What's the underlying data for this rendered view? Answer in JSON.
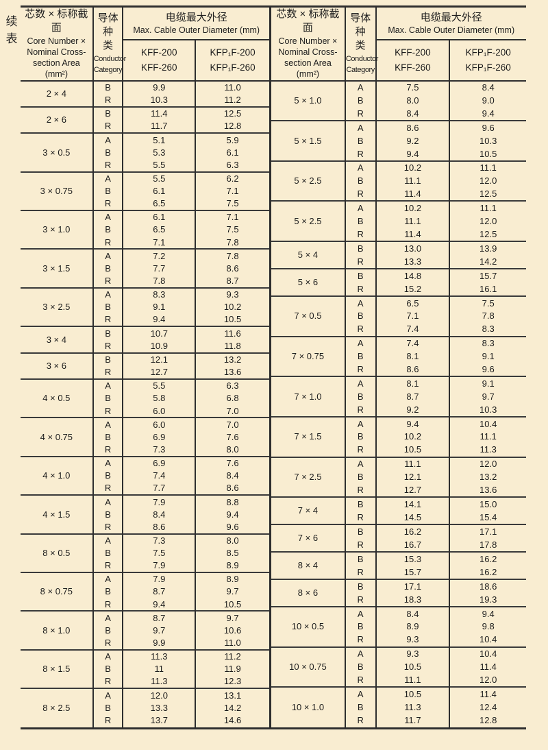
{
  "page": {
    "continued_label": "续\n表"
  },
  "colors": {
    "background": "#f9edd1",
    "rule": "#2e2e2e",
    "text": "#1c1c1c"
  },
  "header": {
    "size_zh": "芯数 × 标称截面",
    "size_en": "Core Number ×\nNominal Cross-\nsection Area\n(mm²)",
    "cat_zh": "导体种\n类",
    "cat_en": "Conductor\nCategory",
    "dia_zh": "电缆最大外径",
    "dia_en": "Max. Cable Outer Diameter (mm)",
    "kff": "KFF-200\nKFF-260",
    "kfp": "KFP₁F-200\nKFP₁F-260"
  },
  "tables": {
    "left": {
      "groups": [
        {
          "size": "2 × 4",
          "rows": [
            [
              "B",
              "9.9",
              "11.0"
            ],
            [
              "R",
              "10.3",
              "11.2"
            ]
          ]
        },
        {
          "size": "2 × 6",
          "rows": [
            [
              "B",
              "11.4",
              "12.5"
            ],
            [
              "R",
              "11.7",
              "12.8"
            ]
          ]
        },
        {
          "size": "3 × 0.5",
          "rows": [
            [
              "A",
              "5.1",
              "5.9"
            ],
            [
              "B",
              "5.3",
              "6.1"
            ],
            [
              "R",
              "5.5",
              "6.3"
            ]
          ]
        },
        {
          "size": "3 × 0.75",
          "rows": [
            [
              "A",
              "5.5",
              "6.2"
            ],
            [
              "B",
              "6.1",
              "7.1"
            ],
            [
              "R",
              "6.5",
              "7.5"
            ]
          ]
        },
        {
          "size": "3 × 1.0",
          "rows": [
            [
              "A",
              "6.1",
              "7.1"
            ],
            [
              "B",
              "6.5",
              "7.5"
            ],
            [
              "R",
              "7.1",
              "7.8"
            ]
          ]
        },
        {
          "size": "3 × 1.5",
          "rows": [
            [
              "A",
              "7.2",
              "7.8"
            ],
            [
              "B",
              "7.7",
              "8.6"
            ],
            [
              "R",
              "7.8",
              "8.7"
            ]
          ]
        },
        {
          "size": "3 × 2.5",
          "rows": [
            [
              "A",
              "8.3",
              "9.3"
            ],
            [
              "B",
              "9.1",
              "10.2"
            ],
            [
              "R",
              "9.4",
              "10.5"
            ]
          ]
        },
        {
          "size": "3 × 4",
          "rows": [
            [
              "B",
              "10.7",
              "11.6"
            ],
            [
              "R",
              "10.9",
              "11.8"
            ]
          ]
        },
        {
          "size": "3 × 6",
          "rows": [
            [
              "B",
              "12.1",
              "13.2"
            ],
            [
              "R",
              "12.7",
              "13.6"
            ]
          ]
        },
        {
          "size": "4 × 0.5",
          "rows": [
            [
              "A",
              "5.5",
              "6.3"
            ],
            [
              "B",
              "5.8",
              "6.8"
            ],
            [
              "R",
              "6.0",
              "7.0"
            ]
          ]
        },
        {
          "size": "4 × 0.75",
          "rows": [
            [
              "A",
              "6.0",
              "7.0"
            ],
            [
              "B",
              "6.9",
              "7.6"
            ],
            [
              "R",
              "7.3",
              "8.0"
            ]
          ]
        },
        {
          "size": "4 × 1.0",
          "rows": [
            [
              "A",
              "6.9",
              "7.6"
            ],
            [
              "B",
              "7.4",
              "8.4"
            ],
            [
              "R",
              "7.7",
              "8.6"
            ]
          ]
        },
        {
          "size": "4 × 1.5",
          "rows": [
            [
              "A",
              "7.9",
              "8.8"
            ],
            [
              "B",
              "8.4",
              "9.4"
            ],
            [
              "R",
              "8.6",
              "9.6"
            ]
          ]
        },
        {
          "size": "8 × 0.5",
          "rows": [
            [
              "A",
              "7.3",
              "8.0"
            ],
            [
              "B",
              "7.5",
              "8.5"
            ],
            [
              "R",
              "7.9",
              "8.9"
            ]
          ]
        },
        {
          "size": "8 × 0.75",
          "rows": [
            [
              "A",
              "7.9",
              "8.9"
            ],
            [
              "B",
              "8.7",
              "9.7"
            ],
            [
              "R",
              "9.4",
              "10.5"
            ]
          ]
        },
        {
          "size": "8 × 1.0",
          "rows": [
            [
              "A",
              "8.7",
              "9.7"
            ],
            [
              "B",
              "9.7",
              "10.6"
            ],
            [
              "R",
              "9.9",
              "11.0"
            ]
          ]
        },
        {
          "size": "8 × 1.5",
          "rows": [
            [
              "A",
              "11.3",
              "11.2"
            ],
            [
              "B",
              "11",
              "11.9"
            ],
            [
              "R",
              "11.3",
              "12.3"
            ]
          ]
        },
        {
          "size": "8 × 2.5",
          "rows": [
            [
              "A",
              "12.0",
              "13.1"
            ],
            [
              "B",
              "13.3",
              "14.2"
            ],
            [
              "R",
              "13.7",
              "14.6"
            ]
          ]
        }
      ]
    },
    "right": {
      "groups": [
        {
          "size": "5 × 1.0",
          "rows": [
            [
              "A",
              "7.5",
              "8.4"
            ],
            [
              "B",
              "8.0",
              "9.0"
            ],
            [
              "R",
              "8.4",
              "9.4"
            ]
          ]
        },
        {
          "size": "5 × 1.5",
          "rows": [
            [
              "A",
              "8.6",
              "9.6"
            ],
            [
              "B",
              "9.2",
              "10.3"
            ],
            [
              "R",
              "9.4",
              "10.5"
            ]
          ]
        },
        {
          "size": "5 × 2.5",
          "rows": [
            [
              "A",
              "10.2",
              "11.1"
            ],
            [
              "B",
              "11.1",
              "12.0"
            ],
            [
              "R",
              "11.4",
              "12.5"
            ]
          ]
        },
        {
          "size": "5 × 2.5",
          "rows": [
            [
              "A",
              "10.2",
              "11.1"
            ],
            [
              "B",
              "11.1",
              "12.0"
            ],
            [
              "R",
              "11.4",
              "12.5"
            ]
          ]
        },
        {
          "size": "5 × 4",
          "rows": [
            [
              "B",
              "13.0",
              "13.9"
            ],
            [
              "R",
              "13.3",
              "14.2"
            ]
          ]
        },
        {
          "size": "5 × 6",
          "rows": [
            [
              "B",
              "14.8",
              "15.7"
            ],
            [
              "R",
              "15.2",
              "16.1"
            ]
          ]
        },
        {
          "size": "7 × 0.5",
          "rows": [
            [
              "A",
              "6.5",
              "7.5"
            ],
            [
              "B",
              "7.1",
              "7.8"
            ],
            [
              "R",
              "7.4",
              "8.3"
            ]
          ]
        },
        {
          "size": "7 × 0.75",
          "rows": [
            [
              "A",
              "7.4",
              "8.3"
            ],
            [
              "B",
              "8.1",
              "9.1"
            ],
            [
              "R",
              "8.6",
              "9.6"
            ]
          ]
        },
        {
          "size": "7 × 1.0",
          "rows": [
            [
              "A",
              "8.1",
              "9.1"
            ],
            [
              "B",
              "8.7",
              "9.7"
            ],
            [
              "R",
              "9.2",
              "10.3"
            ]
          ]
        },
        {
          "size": "7 × 1.5",
          "rows": [
            [
              "A",
              "9.4",
              "10.4"
            ],
            [
              "B",
              "10.2",
              "11.1"
            ],
            [
              "R",
              "10.5",
              "11.3"
            ]
          ]
        },
        {
          "size": "7 × 2.5",
          "rows": [
            [
              "A",
              "11.1",
              "12.0"
            ],
            [
              "B",
              "12.1",
              "13.2"
            ],
            [
              "R",
              "12.7",
              "13.6"
            ]
          ]
        },
        {
          "size": "7 × 4",
          "rows": [
            [
              "B",
              "14.1",
              "15.0"
            ],
            [
              "R",
              "14.5",
              "15.4"
            ]
          ]
        },
        {
          "size": "7 × 6",
          "rows": [
            [
              "B",
              "16.2",
              "17.1"
            ],
            [
              "R",
              "16.7",
              "17.8"
            ]
          ]
        },
        {
          "size": "8 × 4",
          "rows": [
            [
              "B",
              "15.3",
              "16.2"
            ],
            [
              "R",
              "15.7",
              "16.2"
            ]
          ]
        },
        {
          "size": "8 × 6",
          "rows": [
            [
              "B",
              "17.1",
              "18.6"
            ],
            [
              "R",
              "18.3",
              "19.3"
            ]
          ]
        },
        {
          "size": "10 × 0.5",
          "rows": [
            [
              "A",
              "8.4",
              "9.4"
            ],
            [
              "B",
              "8.9",
              "9.8"
            ],
            [
              "R",
              "9.3",
              "10.4"
            ]
          ]
        },
        {
          "size": "10 × 0.75",
          "rows": [
            [
              "A",
              "9.3",
              "10.4"
            ],
            [
              "B",
              "10.5",
              "11.4"
            ],
            [
              "R",
              "11.1",
              "12.0"
            ]
          ]
        },
        {
          "size": "10 × 1.0",
          "rows": [
            [
              "A",
              "10.5",
              "11.4"
            ],
            [
              "B",
              "11.3",
              "12.4"
            ],
            [
              "R",
              "11.7",
              "12.8"
            ]
          ]
        }
      ]
    }
  }
}
